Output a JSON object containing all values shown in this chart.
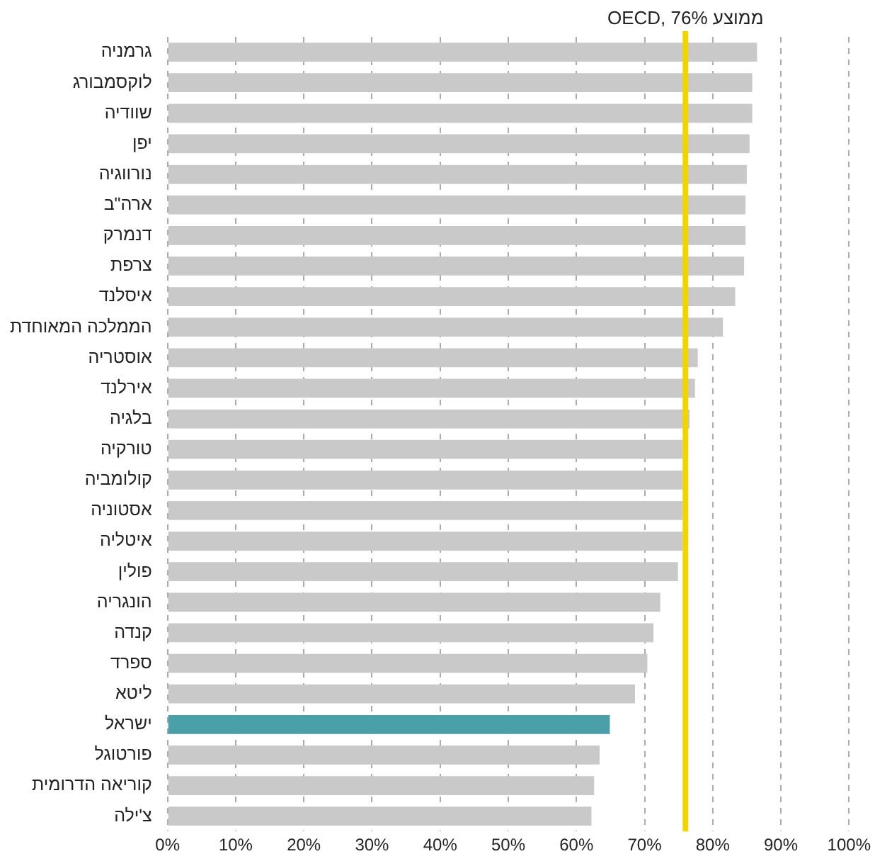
{
  "chart_data": {
    "type": "bar",
    "orientation": "horizontal",
    "categories": [
      "גרמניה",
      "לוקסמבורג",
      "שוודיה",
      "יפן",
      "נורווגיה",
      "ארה\"ב",
      "דנמרק",
      "צרפת",
      "איסלנד",
      "הממלכה המאוחדת",
      "אוסטריה",
      "אירלנד",
      "בלגיה",
      "טורקיה",
      "קולומביה",
      "אסטוניה",
      "איטליה",
      "פולין",
      "הונגריה",
      "קנדה",
      "ספרד",
      "ליטא",
      "ישראל",
      "פורטוגל",
      "קוריאה הדרומית",
      "צ'ילה"
    ],
    "values": [
      86.5,
      85.8,
      85.8,
      85.4,
      85.0,
      84.8,
      84.8,
      84.6,
      83.3,
      81.5,
      77.8,
      77.4,
      76.6,
      75.6,
      75.6,
      75.6,
      75.6,
      74.9,
      72.3,
      71.3,
      70.4,
      68.6,
      64.9,
      63.4,
      62.6,
      62.2
    ],
    "colors": [
      "#c9c9c9",
      "#c9c9c9",
      "#c9c9c9",
      "#c9c9c9",
      "#c9c9c9",
      "#c9c9c9",
      "#c9c9c9",
      "#c9c9c9",
      "#c9c9c9",
      "#c9c9c9",
      "#c9c9c9",
      "#c9c9c9",
      "#c9c9c9",
      "#c9c9c9",
      "#c9c9c9",
      "#c9c9c9",
      "#c9c9c9",
      "#c9c9c9",
      "#c9c9c9",
      "#c9c9c9",
      "#c9c9c9",
      "#c9c9c9",
      "#4a9fa9",
      "#c9c9c9",
      "#c9c9c9",
      "#c9c9c9"
    ],
    "xlim": [
      0,
      100
    ],
    "xticks": [
      {
        "value": 0,
        "label": "0%"
      },
      {
        "value": 10,
        "label": "10%"
      },
      {
        "value": 20,
        "label": "20%"
      },
      {
        "value": 30,
        "label": "30%"
      },
      {
        "value": 40,
        "label": "40%"
      },
      {
        "value": 50,
        "label": "50%"
      },
      {
        "value": 60,
        "label": "60%"
      },
      {
        "value": 70,
        "label": "70%"
      },
      {
        "value": 80,
        "label": "80%"
      },
      {
        "value": 90,
        "label": "90%"
      },
      {
        "value": 100,
        "label": "100%"
      }
    ],
    "ref_lines": [
      {
        "axis": "x",
        "value": 76,
        "label": "ממוצע OECD, 76%",
        "color": "#f2d400"
      }
    ],
    "grid": "x",
    "legend": false
  }
}
